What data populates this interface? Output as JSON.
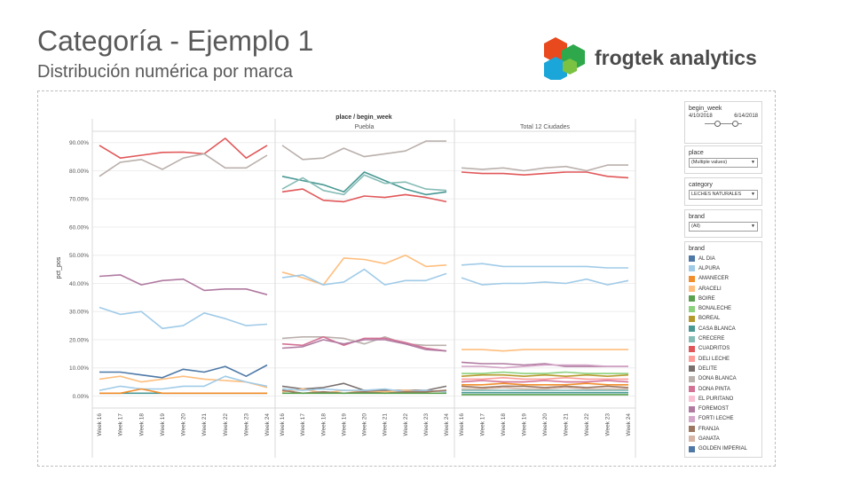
{
  "slide": {
    "title": "Categoría - Ejemplo 1",
    "subtitle": "Distribución numérica por marca"
  },
  "logo": {
    "text": "frogtek analytics",
    "colors": [
      "#e8491d",
      "#2ea84a",
      "#1aa6d9",
      "#7cc242"
    ]
  },
  "filters": {
    "begin_week": {
      "label": "begin_week",
      "start": "4/10/2018",
      "end": "6/14/2018"
    },
    "place": {
      "label": "place",
      "value": "(Multiple values)"
    },
    "category": {
      "label": "category",
      "value": "LECHES NATURALES"
    },
    "brand": {
      "label": "brand",
      "value": "(All)"
    }
  },
  "legend": {
    "title": "brand",
    "items": [
      {
        "label": "AL DIA",
        "color": "#4e79a7"
      },
      {
        "label": "ALPURA",
        "color": "#a0cbe8"
      },
      {
        "label": "AMANECER",
        "color": "#f28e2b"
      },
      {
        "label": "ARACELI",
        "color": "#ffbe7d"
      },
      {
        "label": "BOIRE",
        "color": "#59a14f"
      },
      {
        "label": "BONALECHE",
        "color": "#8cd17d"
      },
      {
        "label": "BOREAL",
        "color": "#b6992d"
      },
      {
        "label": "CASA BLANCA",
        "color": "#499894"
      },
      {
        "label": "CRECERE",
        "color": "#86bcb6"
      },
      {
        "label": "CUADRITOS",
        "color": "#e15759"
      },
      {
        "label": "DELI LECHE",
        "color": "#ff9d9a"
      },
      {
        "label": "DELITE",
        "color": "#79706e"
      },
      {
        "label": "DONA BLANCA",
        "color": "#bab0ac"
      },
      {
        "label": "DONA PINTA",
        "color": "#d37295"
      },
      {
        "label": "EL PURITANO",
        "color": "#fabfd2"
      },
      {
        "label": "FOREMOST",
        "color": "#b07aa1"
      },
      {
        "label": "FORTI LECHE",
        "color": "#d4a6c8"
      },
      {
        "label": "FRANJA",
        "color": "#9d7660"
      },
      {
        "label": "GANATA",
        "color": "#d7b5a6"
      },
      {
        "label": "GOLDEN IMPERIAL",
        "color": "#4e79a7"
      }
    ]
  },
  "chart_data": {
    "type": "line",
    "title": "place / begin_week",
    "ylabel": "pct_pos",
    "ylim": [
      -0.03,
      0.94
    ],
    "yticks": [
      "0.00%",
      "10.00%",
      "20.00%",
      "30.00%",
      "40.00%",
      "50.00%",
      "60.00%",
      "70.00%",
      "80.00%",
      "90.00%"
    ],
    "x": [
      "Week 16",
      "Week 17",
      "Week 18",
      "Week 19",
      "Week 20",
      "Week 21",
      "Week 22",
      "Week 23",
      "Week 24"
    ],
    "panels": [
      {
        "name": "",
        "series": [
          {
            "color": "#e15759",
            "values": [
              0.89,
              0.845,
              0.855,
              0.865,
              0.866,
              0.86,
              0.915,
              0.845,
              0.89
            ]
          },
          {
            "color": "#bab0ac",
            "values": [
              0.78,
              0.83,
              0.84,
              0.805,
              0.845,
              0.86,
              0.81,
              0.81,
              0.855
            ]
          },
          {
            "color": "#b07aa1",
            "values": [
              0.425,
              0.43,
              0.395,
              0.41,
              0.415,
              0.375,
              0.38,
              0.38,
              0.36
            ]
          },
          {
            "color": "#a0cbe8",
            "values": [
              0.315,
              0.29,
              0.3,
              0.24,
              0.25,
              0.295,
              0.275,
              0.25,
              0.255
            ]
          },
          {
            "color": "#4e79a7",
            "values": [
              0.085,
              0.085,
              0.075,
              0.065,
              0.095,
              0.085,
              0.105,
              0.07,
              0.11
            ]
          },
          {
            "color": "#ffbe7d",
            "values": [
              0.06,
              0.07,
              0.05,
              0.06,
              0.07,
              0.06,
              0.055,
              0.05,
              0.03
            ]
          },
          {
            "color": "#a0cbe8",
            "values": [
              0.02,
              0.035,
              0.025,
              0.025,
              0.035,
              0.035,
              0.07,
              0.05,
              0.035
            ]
          },
          {
            "color": "#499894",
            "values": [
              0.01,
              0.01,
              0.01,
              0.01,
              0.01,
              0.01,
              0.01,
              0.01,
              0.01
            ]
          },
          {
            "color": "#f28e2b",
            "values": [
              0.01,
              0.01,
              0.025,
              0.01,
              0.01,
              0.01,
              0.01,
              0.01,
              0.01
            ]
          }
        ]
      },
      {
        "name": "Puebla",
        "series": [
          {
            "color": "#bab0ac",
            "values": [
              0.89,
              0.84,
              0.845,
              0.88,
              0.85,
              0.86,
              0.87,
              0.905,
              0.905
            ]
          },
          {
            "color": "#499894",
            "values": [
              0.78,
              0.765,
              0.75,
              0.725,
              0.795,
              0.765,
              0.735,
              0.715,
              0.725
            ]
          },
          {
            "color": "#86bcb6",
            "values": [
              0.735,
              0.775,
              0.73,
              0.715,
              0.785,
              0.755,
              0.76,
              0.735,
              0.73
            ]
          },
          {
            "color": "#e15759",
            "values": [
              0.725,
              0.735,
              0.695,
              0.69,
              0.71,
              0.705,
              0.715,
              0.705,
              0.69
            ]
          },
          {
            "color": "#ffbe7d",
            "values": [
              0.44,
              0.42,
              0.395,
              0.49,
              0.485,
              0.47,
              0.5,
              0.46,
              0.465
            ]
          },
          {
            "color": "#a0cbe8",
            "values": [
              0.42,
              0.43,
              0.395,
              0.405,
              0.45,
              0.395,
              0.41,
              0.41,
              0.435
            ]
          },
          {
            "color": "#bab0ac",
            "values": [
              0.205,
              0.21,
              0.21,
              0.205,
              0.185,
              0.21,
              0.185,
              0.18,
              0.18
            ]
          },
          {
            "color": "#d37295",
            "values": [
              0.185,
              0.18,
              0.21,
              0.18,
              0.205,
              0.205,
              0.19,
              0.17,
              0.16
            ]
          },
          {
            "color": "#b07aa1",
            "values": [
              0.17,
              0.175,
              0.2,
              0.185,
              0.2,
              0.2,
              0.185,
              0.165,
              0.16
            ]
          },
          {
            "color": "#79706e",
            "values": [
              0.035,
              0.025,
              0.03,
              0.045,
              0.02,
              0.02,
              0.02,
              0.02,
              0.035
            ]
          },
          {
            "color": "#ffbe7d",
            "values": [
              0.015,
              0.025,
              0.01,
              0.02,
              0.015,
              0.015,
              0.02,
              0.015,
              0.02
            ]
          },
          {
            "color": "#a0cbe8",
            "values": [
              0.025,
              0.02,
              0.025,
              0.02,
              0.02,
              0.025,
              0.015,
              0.02,
              0.015
            ]
          },
          {
            "color": "#9d7660",
            "values": [
              0.02,
              0.01,
              0.015,
              0.01,
              0.015,
              0.01,
              0.015,
              0.015,
              0.02
            ]
          },
          {
            "color": "#59a14f",
            "values": [
              0.01,
              0.01,
              0.01,
              0.01,
              0.01,
              0.01,
              0.01,
              0.01,
              0.01
            ]
          }
        ]
      },
      {
        "name": "Total 12 Ciudades",
        "series": [
          {
            "color": "#bab0ac",
            "values": [
              0.81,
              0.805,
              0.81,
              0.8,
              0.81,
              0.815,
              0.8,
              0.82,
              0.82
            ]
          },
          {
            "color": "#e15759",
            "values": [
              0.795,
              0.79,
              0.79,
              0.785,
              0.79,
              0.795,
              0.795,
              0.78,
              0.775
            ]
          },
          {
            "color": "#a0cbe8",
            "values": [
              0.465,
              0.47,
              0.46,
              0.46,
              0.46,
              0.46,
              0.46,
              0.455,
              0.455
            ]
          },
          {
            "color": "#a0cbe8",
            "values": [
              0.42,
              0.395,
              0.4,
              0.4,
              0.405,
              0.4,
              0.415,
              0.395,
              0.41
            ]
          },
          {
            "color": "#ffbe7d",
            "values": [
              0.165,
              0.165,
              0.16,
              0.165,
              0.165,
              0.165,
              0.165,
              0.165,
              0.165
            ]
          },
          {
            "color": "#b07aa1",
            "values": [
              0.12,
              0.115,
              0.115,
              0.11,
              0.115,
              0.105,
              0.105,
              0.105,
              0.105
            ]
          },
          {
            "color": "#d4a6c8",
            "values": [
              0.105,
              0.105,
              0.1,
              0.105,
              0.11,
              0.11,
              0.11,
              0.105,
              0.105
            ]
          },
          {
            "color": "#8cd17d",
            "values": [
              0.08,
              0.08,
              0.085,
              0.08,
              0.08,
              0.085,
              0.08,
              0.08,
              0.08
            ]
          },
          {
            "color": "#b6992d",
            "values": [
              0.07,
              0.075,
              0.075,
              0.07,
              0.075,
              0.07,
              0.075,
              0.07,
              0.075
            ]
          },
          {
            "color": "#ff9d9a",
            "values": [
              0.06,
              0.06,
              0.065,
              0.06,
              0.06,
              0.065,
              0.06,
              0.06,
              0.06
            ]
          },
          {
            "color": "#d37295",
            "values": [
              0.05,
              0.055,
              0.05,
              0.05,
              0.055,
              0.05,
              0.05,
              0.055,
              0.05
            ]
          },
          {
            "color": "#f28e2b",
            "values": [
              0.04,
              0.04,
              0.045,
              0.04,
              0.04,
              0.04,
              0.045,
              0.04,
              0.04
            ]
          },
          {
            "color": "#9d7660",
            "values": [
              0.035,
              0.03,
              0.035,
              0.035,
              0.03,
              0.035,
              0.03,
              0.035,
              0.03
            ]
          },
          {
            "color": "#d7b5a6",
            "values": [
              0.025,
              0.025,
              0.03,
              0.025,
              0.025,
              0.03,
              0.025,
              0.025,
              0.025
            ]
          },
          {
            "color": "#86bcb6",
            "values": [
              0.02,
              0.02,
              0.02,
              0.02,
              0.02,
              0.02,
              0.02,
              0.02,
              0.02
            ]
          },
          {
            "color": "#499894",
            "values": [
              0.012,
              0.012,
              0.012,
              0.012,
              0.012,
              0.012,
              0.012,
              0.012,
              0.012
            ]
          },
          {
            "color": "#59a14f",
            "values": [
              0.005,
              0.005,
              0.005,
              0.005,
              0.005,
              0.005,
              0.005,
              0.005,
              0.005
            ]
          }
        ]
      }
    ]
  }
}
